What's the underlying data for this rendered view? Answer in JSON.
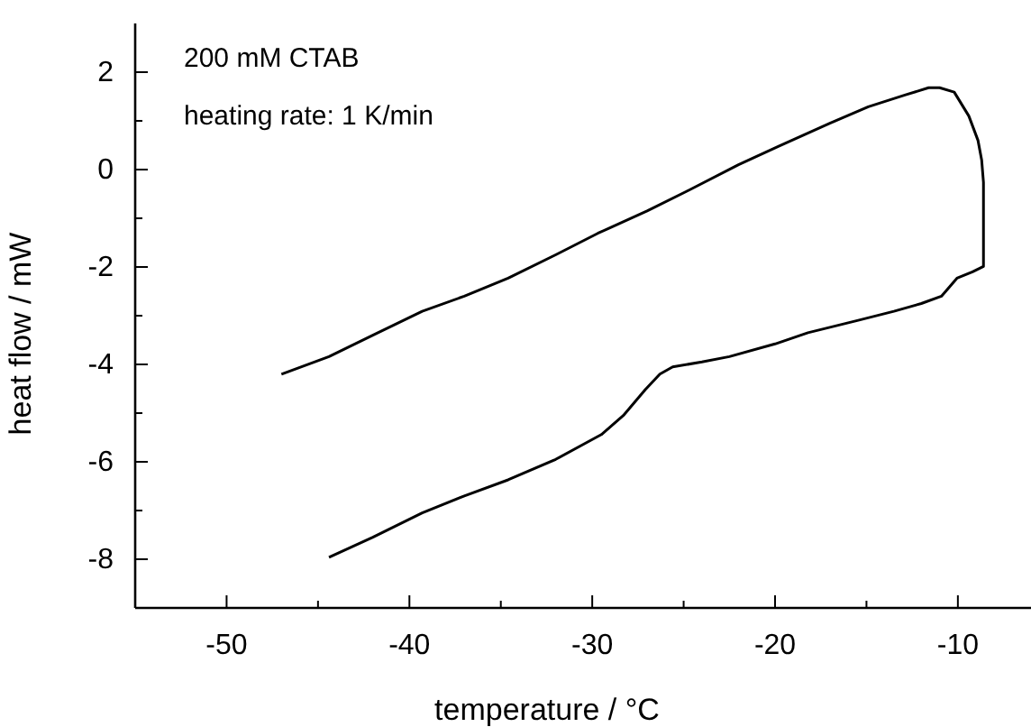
{
  "chart_data": {
    "type": "line",
    "xlabel": "temperature / °C",
    "ylabel": "heat flow / mW",
    "annotations": [
      "200 mM CTAB",
      "heating rate: 1 K/min"
    ],
    "xlim": [
      -55,
      -6
    ],
    "ylim": [
      -9,
      3
    ],
    "xticks": [
      -50,
      {
        "value": -45,
        "label": null
      },
      -40,
      {
        "value": -35,
        "label": null
      },
      -30,
      {
        "value": -25,
        "label": null
      },
      -20,
      {
        "value": -15,
        "label": null
      },
      -10
    ],
    "yticks": [
      {
        "value": -9,
        "label": null
      },
      -8,
      {
        "value": -7,
        "label": null
      },
      -6,
      {
        "value": -5,
        "label": null
      },
      -4,
      {
        "value": -3,
        "label": null
      },
      -2,
      {
        "value": -1,
        "label": null
      },
      0,
      {
        "value": 1,
        "label": null
      },
      2
    ],
    "grid": false,
    "marker": "none",
    "line_style": "solid",
    "series": [
      {
        "color": "#000000",
        "x": [
          -44.4,
          -42,
          -39.3,
          -37,
          -34.6,
          -32,
          -29.5,
          -28.3,
          -27.1,
          -26.3,
          -25.6,
          -24,
          -22.5,
          -20,
          -18.2,
          -15.5,
          -13.5,
          -12,
          -10.9,
          -10.05,
          -9.2,
          -8.6,
          -8.6,
          -8.7,
          -8.9,
          -9.4,
          -10.2,
          -11,
          -11.6,
          -12.9,
          -14.9,
          -17,
          -19.8,
          -22,
          -24.8,
          -27,
          -29.7,
          -32,
          -34.6,
          -37,
          -39.3,
          -42,
          -44.4,
          -47
        ],
        "values": [
          -7.96,
          -7.55,
          -7.05,
          -6.7,
          -6.37,
          -5.95,
          -5.44,
          -5.05,
          -4.52,
          -4.2,
          -4.05,
          -3.95,
          -3.84,
          -3.58,
          -3.35,
          -3.1,
          -2.91,
          -2.75,
          -2.6,
          -2.23,
          -2.1,
          -1.99,
          -0.26,
          0.2,
          0.6,
          1.1,
          1.59,
          1.68,
          1.68,
          1.53,
          1.29,
          0.95,
          0.48,
          0.1,
          -0.44,
          -0.85,
          -1.31,
          -1.75,
          -2.23,
          -2.6,
          -2.91,
          -3.4,
          -3.84,
          -4.2
        ]
      }
    ]
  }
}
